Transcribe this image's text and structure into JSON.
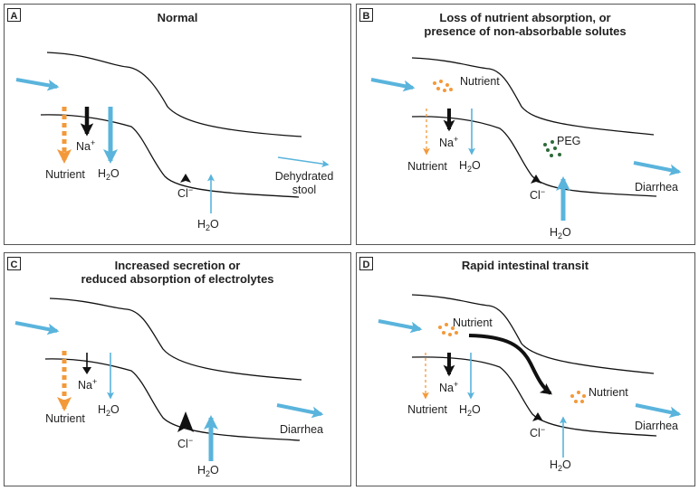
{
  "panels": {
    "a": {
      "letter": "A",
      "title_lines": [
        "Normal"
      ],
      "nutrient": "Nutrient",
      "na": "Na",
      "na_sup": "+",
      "h2o_h": "H",
      "h2o_2": "2",
      "h2o_o": "O",
      "cl": "Cl",
      "cl_sup": "−",
      "h2o2_h": "H",
      "h2o2_2": "2",
      "h2o2_o": "O",
      "outcome_lines": [
        "Dehydrated",
        "stool"
      ]
    },
    "b": {
      "letter": "B",
      "title_lines": [
        "Loss of nutrient absorption, or",
        "presence of non-absorbable solutes"
      ],
      "nutrient_lumen": "Nutrient",
      "peg": "PEG",
      "nutrient": "Nutrient",
      "na": "Na",
      "na_sup": "+",
      "h2o_h": "H",
      "h2o_2": "2",
      "h2o_o": "O",
      "cl": "Cl",
      "cl_sup": "−",
      "h2o2_h": "H",
      "h2o2_2": "2",
      "h2o2_o": "O",
      "outcome": "Diarrhea"
    },
    "c": {
      "letter": "C",
      "title_lines": [
        "Increased secretion or",
        "reduced absorption of electrolytes"
      ],
      "nutrient": "Nutrient",
      "na": "Na",
      "na_sup": "+",
      "h2o_h": "H",
      "h2o_2": "2",
      "h2o_o": "O",
      "cl": "Cl",
      "cl_sup": "−",
      "h2o2_h": "H",
      "h2o2_2": "2",
      "h2o2_o": "O",
      "outcome": "Diarrhea"
    },
    "d": {
      "letter": "D",
      "title_lines": [
        "Rapid intestinal transit"
      ],
      "nutrient_lumen": "Nutrient",
      "nutrient_downstream": "Nutrient",
      "nutrient": "Nutrient",
      "na": "Na",
      "na_sup": "+",
      "h2o_h": "H",
      "h2o_2": "2",
      "h2o_o": "O",
      "cl": "Cl",
      "cl_sup": "−",
      "h2o2_h": "H",
      "h2o2_2": "2",
      "h2o2_o": "O",
      "outcome": "Diarrhea"
    }
  },
  "colors": {
    "blue": "#5ab4dc",
    "orange": "#f3993a",
    "green": "#2e6b3a",
    "black": "#111111",
    "border": "#555555"
  }
}
